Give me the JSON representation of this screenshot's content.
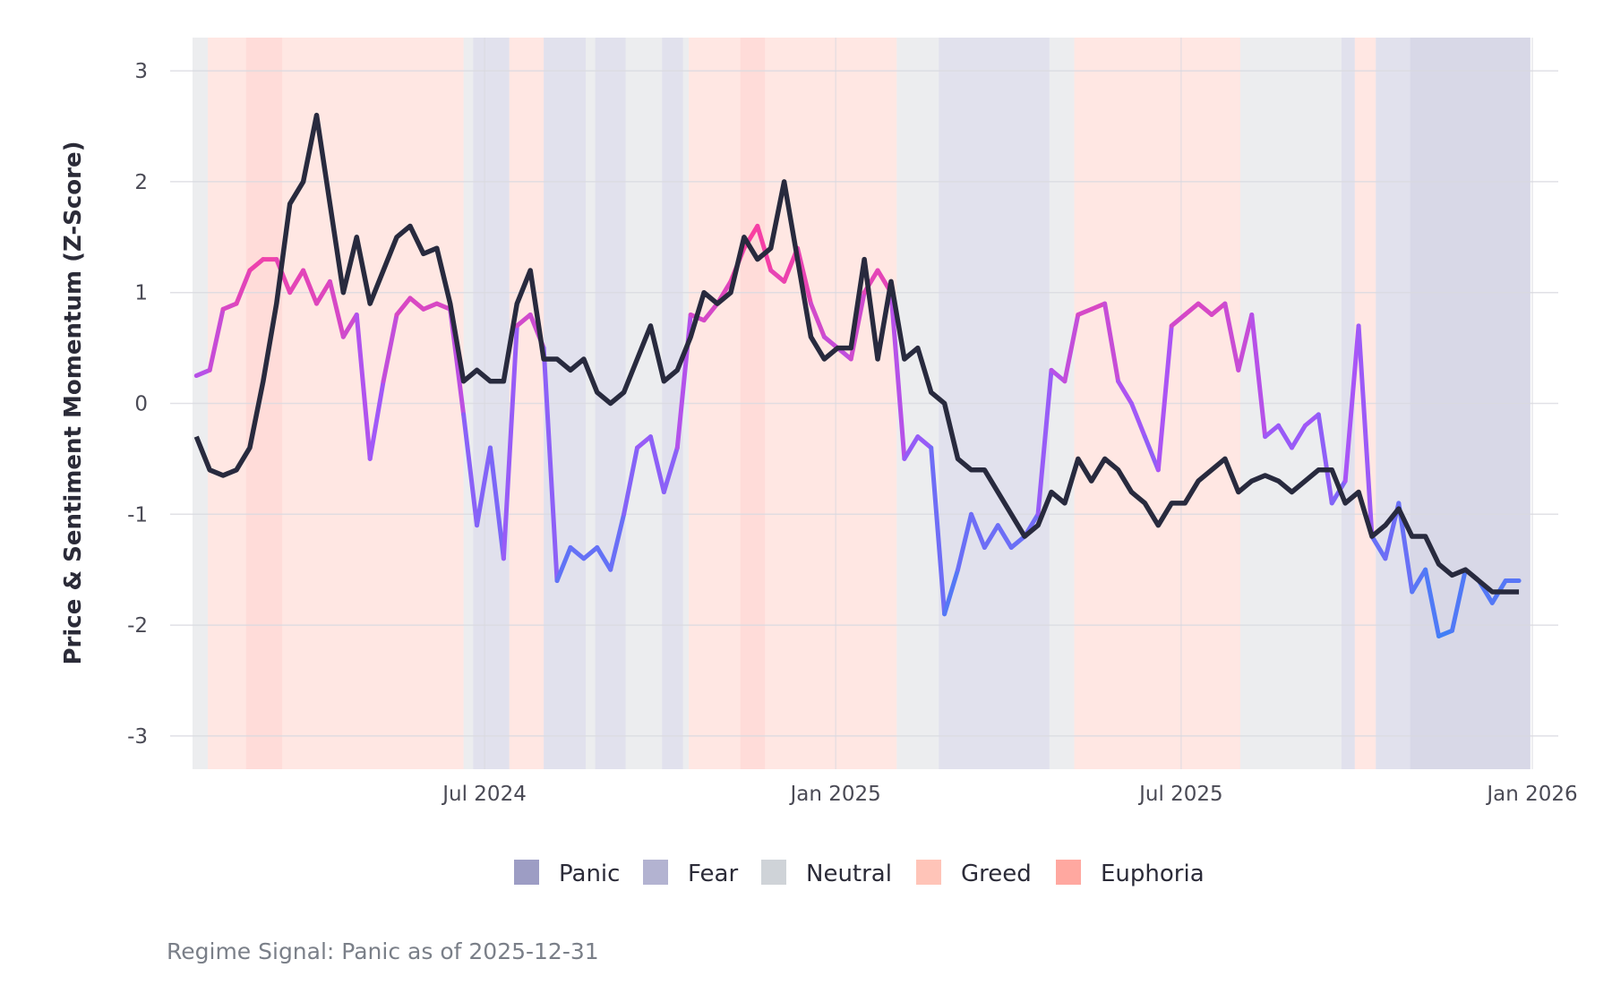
{
  "chart_data": {
    "type": "line",
    "title": "",
    "xlabel": "",
    "ylabel": "Price & Sentiment Momentum (Z-Score)",
    "ylim": [
      -3.3,
      3.3
    ],
    "xlim": [
      "2024-01-30",
      "2025-12-31"
    ],
    "yticks": [
      3,
      2,
      1,
      0,
      -1,
      -2,
      -3
    ],
    "ytick_labels": [
      "3",
      "2",
      "1",
      "0",
      "-1",
      "-2",
      "-3"
    ],
    "xticks": [
      "2024-07-01",
      "2025-01-01",
      "2025-07-01",
      "2026-01-01"
    ],
    "xtick_labels": [
      "Jul 2024",
      "Jan 2025",
      "Jul 2025",
      "Jan 2026"
    ],
    "grid": true,
    "legend_placement": "bottom",
    "x": [
      "2024-02-01",
      "2024-02-08",
      "2024-02-15",
      "2024-02-22",
      "2024-02-29",
      "2024-03-07",
      "2024-03-14",
      "2024-03-21",
      "2024-03-28",
      "2024-04-04",
      "2024-04-11",
      "2024-04-18",
      "2024-04-25",
      "2024-05-02",
      "2024-05-09",
      "2024-05-16",
      "2024-05-23",
      "2024-05-30",
      "2024-06-06",
      "2024-06-13",
      "2024-06-20",
      "2024-06-27",
      "2024-07-04",
      "2024-07-11",
      "2024-07-18",
      "2024-07-25",
      "2024-08-01",
      "2024-08-08",
      "2024-08-15",
      "2024-08-22",
      "2024-08-29",
      "2024-09-05",
      "2024-09-12",
      "2024-09-19",
      "2024-09-26",
      "2024-10-03",
      "2024-10-10",
      "2024-10-17",
      "2024-10-24",
      "2024-10-31",
      "2024-11-07",
      "2024-11-14",
      "2024-11-21",
      "2024-11-28",
      "2024-12-05",
      "2024-12-12",
      "2024-12-19",
      "2024-12-26",
      "2025-01-02",
      "2025-01-09",
      "2025-01-16",
      "2025-01-23",
      "2025-01-30",
      "2025-02-06",
      "2025-02-13",
      "2025-02-20",
      "2025-02-27",
      "2025-03-06",
      "2025-03-13",
      "2025-03-20",
      "2025-03-27",
      "2025-04-03",
      "2025-04-10",
      "2025-04-17",
      "2025-04-24",
      "2025-05-01",
      "2025-05-08",
      "2025-05-15",
      "2025-05-22",
      "2025-05-29",
      "2025-06-05",
      "2025-06-12",
      "2025-06-19",
      "2025-06-26",
      "2025-07-03",
      "2025-07-10",
      "2025-07-17",
      "2025-07-24",
      "2025-07-31",
      "2025-08-07",
      "2025-08-14",
      "2025-08-21",
      "2025-08-28",
      "2025-09-04",
      "2025-09-11",
      "2025-09-18",
      "2025-09-25",
      "2025-10-02",
      "2025-10-09",
      "2025-10-16",
      "2025-10-23",
      "2025-10-30",
      "2025-11-06",
      "2025-11-13",
      "2025-11-20",
      "2025-11-27",
      "2025-12-04",
      "2025-12-11",
      "2025-12-18",
      "2025-12-25"
    ],
    "series": [
      {
        "role": "price",
        "color": "#282a3e",
        "values": [
          -0.3,
          -0.6,
          -0.65,
          -0.6,
          -0.4,
          0.2,
          0.9,
          1.8,
          2.0,
          2.6,
          1.8,
          1.0,
          1.5,
          0.9,
          1.2,
          1.5,
          1.6,
          1.35,
          1.4,
          0.9,
          0.2,
          0.3,
          0.2,
          0.2,
          0.9,
          1.2,
          0.4,
          0.4,
          0.3,
          0.4,
          0.1,
          0.0,
          0.1,
          0.4,
          0.7,
          0.2,
          0.3,
          0.6,
          1.0,
          0.9,
          1.0,
          1.5,
          1.3,
          1.4,
          2.0,
          1.3,
          0.6,
          0.4,
          0.5,
          0.5,
          1.3,
          0.4,
          1.1,
          0.4,
          0.5,
          0.1,
          0.0,
          -0.5,
          -0.6,
          -0.6,
          -0.8,
          -1.0,
          -1.2,
          -1.1,
          -0.8,
          -0.9,
          -0.5,
          -0.7,
          -0.5,
          -0.6,
          -0.8,
          -0.9,
          -1.1,
          -0.9,
          -0.9,
          -0.7,
          -0.6,
          -0.5,
          -0.8,
          -0.7,
          -0.65,
          -0.7,
          -0.8,
          -0.7,
          -0.6,
          -0.6,
          -0.9,
          -0.8,
          -1.2,
          -1.1,
          -0.95,
          -1.2,
          -1.2,
          -1.45,
          -1.55,
          -1.5,
          -1.6,
          -1.7,
          -1.7,
          -1.7
        ]
      },
      {
        "role": "sentiment",
        "color_scale": {
          "high": "#ff3d9a",
          "mid": "#a855f7",
          "low": "#3b82f6"
        },
        "values": [
          0.25,
          0.3,
          0.85,
          0.9,
          1.2,
          1.3,
          1.3,
          1.0,
          1.2,
          0.9,
          1.1,
          0.6,
          0.8,
          -0.5,
          0.2,
          0.8,
          0.95,
          0.85,
          0.9,
          0.85,
          -0.1,
          -1.1,
          -0.4,
          -1.4,
          0.7,
          0.8,
          0.5,
          -1.6,
          -1.3,
          -1.4,
          -1.3,
          -1.5,
          -1.0,
          -0.4,
          -0.3,
          -0.8,
          -0.4,
          0.8,
          0.75,
          0.9,
          1.1,
          1.4,
          1.6,
          1.2,
          1.1,
          1.4,
          0.9,
          0.6,
          0.5,
          0.4,
          1.0,
          1.2,
          1.0,
          -0.5,
          -0.3,
          -0.4,
          -1.9,
          -1.5,
          -1.0,
          -1.3,
          -1.1,
          -1.3,
          -1.2,
          -1.0,
          0.3,
          0.2,
          0.8,
          0.85,
          0.9,
          0.2,
          0.0,
          -0.3,
          -0.6,
          0.7,
          0.8,
          0.9,
          0.8,
          0.9,
          0.3,
          0.8,
          -0.3,
          -0.2,
          -0.4,
          -0.2,
          -0.1,
          -0.9,
          -0.7,
          0.7,
          -1.2,
          -1.4,
          -0.9,
          -1.7,
          -1.5,
          -2.1,
          -2.05,
          -1.5,
          -1.6,
          -1.8,
          -1.6,
          -1.6
        ]
      }
    ],
    "regimes": {
      "colors": {
        "Panic": "#9d9dc4",
        "Fear": "#b3b3d1",
        "Neutral": "#cfd3d8",
        "Greed": "#ffc4b8",
        "Euphoria": "#ffa8a0"
      },
      "periods": [
        {
          "start": "2024-01-30",
          "end": "2024-02-07",
          "regime": "Neutral"
        },
        {
          "start": "2024-02-07",
          "end": "2024-02-27",
          "regime": "Greed"
        },
        {
          "start": "2024-02-27",
          "end": "2024-03-17",
          "regime": "Euphoria"
        },
        {
          "start": "2024-03-17",
          "end": "2024-06-20",
          "regime": "Greed"
        },
        {
          "start": "2024-06-20",
          "end": "2024-06-25",
          "regime": "Neutral"
        },
        {
          "start": "2024-06-25",
          "end": "2024-07-02",
          "regime": "Fear"
        },
        {
          "start": "2024-07-02",
          "end": "2024-07-14",
          "regime": "Fear"
        },
        {
          "start": "2024-07-14",
          "end": "2024-08-01",
          "regime": "Greed"
        },
        {
          "start": "2024-08-01",
          "end": "2024-08-23",
          "regime": "Fear"
        },
        {
          "start": "2024-08-23",
          "end": "2024-08-28",
          "regime": "Neutral"
        },
        {
          "start": "2024-08-28",
          "end": "2024-09-13",
          "regime": "Fear"
        },
        {
          "start": "2024-09-13",
          "end": "2024-10-02",
          "regime": "Neutral"
        },
        {
          "start": "2024-10-02",
          "end": "2024-10-13",
          "regime": "Fear"
        },
        {
          "start": "2024-10-13",
          "end": "2024-10-16",
          "regime": "Neutral"
        },
        {
          "start": "2024-10-16",
          "end": "2024-11-12",
          "regime": "Greed"
        },
        {
          "start": "2024-11-12",
          "end": "2024-11-25",
          "regime": "Euphoria"
        },
        {
          "start": "2024-11-25",
          "end": "2025-02-02",
          "regime": "Greed"
        },
        {
          "start": "2025-02-02",
          "end": "2025-02-24",
          "regime": "Neutral"
        },
        {
          "start": "2025-02-24",
          "end": "2025-04-23",
          "regime": "Fear"
        },
        {
          "start": "2025-04-23",
          "end": "2025-05-06",
          "regime": "Neutral"
        },
        {
          "start": "2025-05-06",
          "end": "2025-08-01",
          "regime": "Greed"
        },
        {
          "start": "2025-08-01",
          "end": "2025-09-23",
          "regime": "Neutral"
        },
        {
          "start": "2025-09-23",
          "end": "2025-09-30",
          "regime": "Fear"
        },
        {
          "start": "2025-09-30",
          "end": "2025-10-11",
          "regime": "Greed"
        },
        {
          "start": "2025-10-11",
          "end": "2025-10-29",
          "regime": "Fear"
        },
        {
          "start": "2025-10-29",
          "end": "2025-12-31",
          "regime": "Panic"
        }
      ]
    },
    "legend": [
      "Panic",
      "Fear",
      "Neutral",
      "Greed",
      "Euphoria"
    ],
    "caption": "Regime Signal: Panic as of 2025-12-31"
  }
}
